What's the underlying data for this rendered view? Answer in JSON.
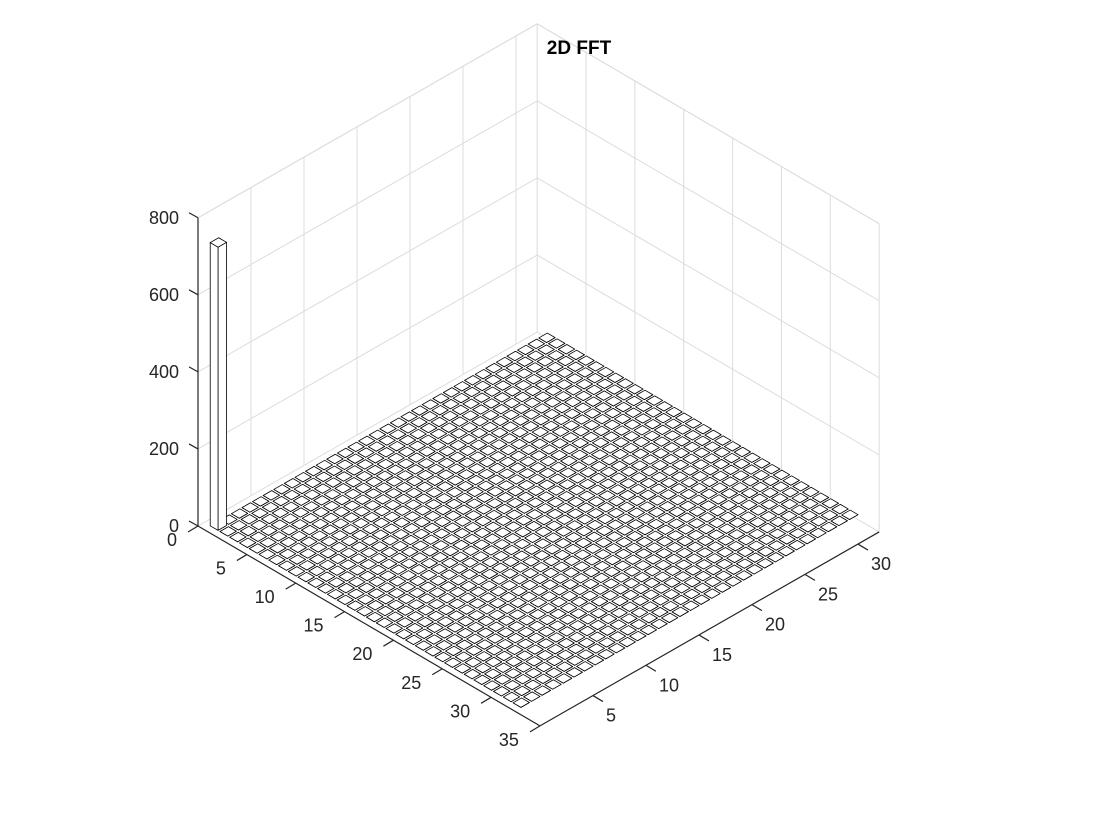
{
  "chart_data": {
    "type": "bar3d",
    "title": "2D FFT",
    "xlabel": "",
    "ylabel": "",
    "zlabel": "",
    "grid_rows": 32,
    "grid_cols": 32,
    "peak": {
      "row": 1,
      "col": 1,
      "value": 735
    },
    "baseline_value": 0,
    "xlim": [
      0,
      35
    ],
    "ylim": [
      0,
      32
    ],
    "zlim": [
      0,
      800
    ],
    "x_ticks": [
      "0",
      "5",
      "10",
      "15",
      "20",
      "25",
      "30",
      "35"
    ],
    "y_ticks": [
      "5",
      "10",
      "15",
      "20",
      "25",
      "30"
    ],
    "z_ticks": [
      "0",
      "200",
      "400",
      "600",
      "800"
    ],
    "grid": true,
    "colors": {
      "bar_face": "#ffffff",
      "bar_edge": "#000000",
      "grid": "#dcdcdc",
      "axis": "#262626"
    }
  }
}
